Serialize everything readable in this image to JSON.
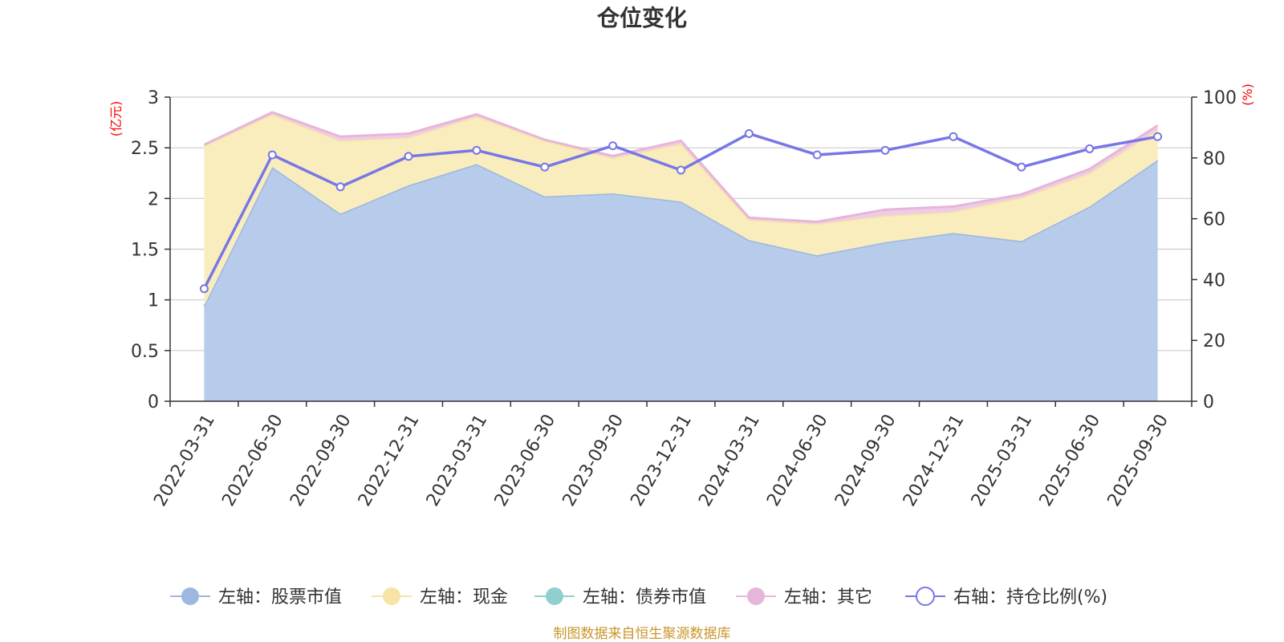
{
  "chart_data": {
    "type": "area",
    "title": "仓位变化",
    "left_unit": "(亿元)",
    "right_unit": "(%)",
    "categories": [
      "2022-03-31",
      "2022-06-30",
      "2022-09-30",
      "2022-12-31",
      "2023-03-31",
      "2023-06-30",
      "2023-09-30",
      "2023-12-31",
      "2024-03-31",
      "2024-06-30",
      "2024-09-30",
      "2024-12-31",
      "2025-03-31",
      "2025-06-30",
      "2025-09-30"
    ],
    "left_axis": {
      "min": 0,
      "max": 3,
      "ticks": [
        0,
        0.5,
        1,
        1.5,
        2,
        2.5,
        3
      ],
      "tick_labels": [
        "0",
        "0.5",
        "1",
        "1.5",
        "2",
        "2.5",
        "3"
      ]
    },
    "right_axis": {
      "min": 0,
      "max": 100,
      "ticks": [
        0,
        20,
        40,
        60,
        80,
        100
      ],
      "tick_labels": [
        "0",
        "20",
        "40",
        "60",
        "80",
        "100"
      ]
    },
    "series": [
      {
        "name": "股票市值",
        "legend": "左轴：股票市值",
        "axis": "left",
        "kind": "area",
        "color": "#9db7e0",
        "fill": "#b7cbea",
        "values": [
          0.94,
          2.31,
          1.85,
          2.13,
          2.34,
          2.02,
          2.05,
          1.97,
          1.59,
          1.44,
          1.57,
          1.66,
          1.58,
          1.92,
          2.38
        ]
      },
      {
        "name": "现金",
        "legend": "左轴：现金",
        "axis": "left",
        "kind": "area",
        "color": "#f7e3a6",
        "fill": "#faedbd",
        "values": [
          1.58,
          0.52,
          0.72,
          0.47,
          0.47,
          0.55,
          0.35,
          0.57,
          0.2,
          0.31,
          0.26,
          0.21,
          0.43,
          0.33,
          0.3
        ]
      },
      {
        "name": "债券市值",
        "legend": "左轴：债券市值",
        "axis": "left",
        "kind": "area",
        "color": "#8fd0cf",
        "fill": "#b5e1e0",
        "values": [
          0,
          0,
          0,
          0,
          0,
          0,
          0,
          0,
          0,
          0,
          0,
          0,
          0,
          0,
          0
        ]
      },
      {
        "name": "其它",
        "legend": "左轴：其它",
        "axis": "left",
        "kind": "area",
        "color": "#e6b6da",
        "fill": "#efcce6",
        "values": [
          0.01,
          0.02,
          0.04,
          0.04,
          0.02,
          0.01,
          0.02,
          0.03,
          0.02,
          0.02,
          0.06,
          0.05,
          0.03,
          0.04,
          0.04
        ]
      },
      {
        "name": "持仓比例(%)",
        "legend": "右轴：持仓比例(%)",
        "axis": "right",
        "kind": "line",
        "color": "#7777e6",
        "values": [
          37,
          81,
          70.5,
          80.5,
          82.5,
          77,
          84,
          76,
          88,
          81,
          82.5,
          87,
          77,
          83,
          87
        ]
      }
    ],
    "source_note": "制图数据来自恒生聚源数据库"
  }
}
